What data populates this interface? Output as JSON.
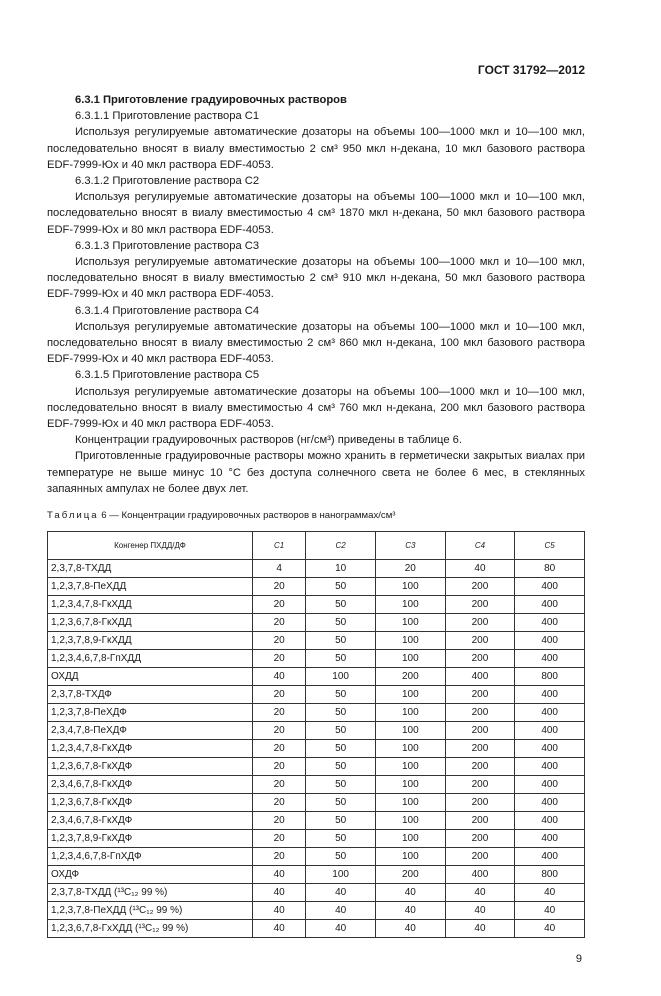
{
  "header": {
    "doc_code": "ГОСТ 31792—2012"
  },
  "paragraphs": [
    {
      "t": "6.3.1 Приготовление градуировочных растворов",
      "bold": true
    },
    {
      "t": "6.3.1.1 Приготовление раствора C1"
    },
    {
      "t": "Используя регулируемые автоматические дозаторы на объемы 100—1000 мкл и 10—100 мкл, последовательно вносят в виалу вместимостью 2 см³ 950 мкл н-декана, 10 мкл базового раствора EDF-7999-Юх и 40 мкл раствора EDF-4053."
    },
    {
      "t": "6.3.1.2 Приготовление раствора C2"
    },
    {
      "t": "Используя регулируемые автоматические дозаторы на объемы 100—1000 мкл и 10—100 мкл, последовательно вносят в виалу вместимостью 4 см³ 1870 мкл н-декана, 50 мкл базового раствора EDF-7999-Юх и 80 мкл раствора EDF-4053."
    },
    {
      "t": "6.3.1.3 Приготовление раствора C3"
    },
    {
      "t": "Используя регулируемые автоматические дозаторы на объемы 100—1000 мкл и 10—100 мкл, последовательно вносят в виалу вместимостью 2 см³ 910 мкл н-декана, 50 мкл базового раствора EDF-7999-Юх и 40 мкл раствора EDF-4053."
    },
    {
      "t": "6.3.1.4 Приготовление раствора C4"
    },
    {
      "t": "Используя регулируемые автоматические дозаторы на объемы 100—1000 мкл и 10—100 мкл, последовательно вносят в виалу вместимостью 2 см³ 860 мкл н-декана, 100 мкл базового раствора EDF-7999-Юх и 40 мкл раствора EDF-4053."
    },
    {
      "t": "6.3.1.5 Приготовление раствора C5"
    },
    {
      "t": "Используя регулируемые автоматические дозаторы на объемы 100—1000 мкл и 10—100 мкл, последовательно вносят в виалу вместимостью 4 см³ 760 мкл н-декана, 200 мкл базового раствора EDF-7999-Юх и 40 мкл раствора EDF-4053."
    },
    {
      "t": "Концентрации градуировочных растворов (нг/см³) приведены в таблице 6."
    },
    {
      "t": "Приготовленные градуировочные растворы можно хранить в герметически закрытых виалах при температуре не выше минус 10 °С без доступа солнечного света не более 6 мес, в стеклянных запаянных ампулах не более двух лет."
    }
  ],
  "table": {
    "caption_label": "Таблица",
    "caption_text": " 6 — Концентрации градуировочных растворов в нанограммах/см³",
    "headers": [
      "Конгенер ПХДД/ДФ",
      "C1",
      "C2",
      "C3",
      "C4",
      "C5"
    ],
    "rows": [
      [
        "2,3,7,8-ТХДД",
        "4",
        "10",
        "20",
        "40",
        "80"
      ],
      [
        "1,2,3,7,8-ПеХДД",
        "20",
        "50",
        "100",
        "200",
        "400"
      ],
      [
        "1,2,3,4,7,8-ГкХДД",
        "20",
        "50",
        "100",
        "200",
        "400"
      ],
      [
        "1,2,3,6,7,8-ГкХДД",
        "20",
        "50",
        "100",
        "200",
        "400"
      ],
      [
        "1,2,3,7,8,9-ГкХДД",
        "20",
        "50",
        "100",
        "200",
        "400"
      ],
      [
        "1,2,3,4,6,7,8-ГпХДД",
        "20",
        "50",
        "100",
        "200",
        "400"
      ],
      [
        "ОХДД",
        "40",
        "100",
        "200",
        "400",
        "800"
      ],
      [
        "2,3,7,8-ТХДФ",
        "20",
        "50",
        "100",
        "200",
        "400"
      ],
      [
        "1,2,3,7,8-ПеХДФ",
        "20",
        "50",
        "100",
        "200",
        "400"
      ],
      [
        "2,3,4,7,8-ПеХДФ",
        "20",
        "50",
        "100",
        "200",
        "400"
      ],
      [
        "1,2,3,4,7,8-ГкХДФ",
        "20",
        "50",
        "100",
        "200",
        "400"
      ],
      [
        "1,2,3,6,7,8-ГкХДФ",
        "20",
        "50",
        "100",
        "200",
        "400"
      ],
      [
        "2,3,4,6,7,8-ГкХДФ",
        "20",
        "50",
        "100",
        "200",
        "400"
      ],
      [
        "1,2,3,6,7,8-ГкХДФ",
        "20",
        "50",
        "100",
        "200",
        "400"
      ],
      [
        "2,3,4,6,7,8-ГкХДФ",
        "20",
        "50",
        "100",
        "200",
        "400"
      ],
      [
        "1,2,3,7,8,9-ГкХДФ",
        "20",
        "50",
        "100",
        "200",
        "400"
      ],
      [
        "1,2,3,4,6,7,8-ГпХДФ",
        "20",
        "50",
        "100",
        "200",
        "400"
      ],
      [
        "ОХДФ",
        "40",
        "100",
        "200",
        "400",
        "800"
      ],
      [
        "2,3,7,8-ТХДД (¹³C₁₂ 99 %)",
        "40",
        "40",
        "40",
        "40",
        "40"
      ],
      [
        "1,2,3,7,8-ПеХДД (¹³C₁₂ 99 %)",
        "40",
        "40",
        "40",
        "40",
        "40"
      ],
      [
        "1,2,3,6,7,8-ГхХДД (¹³C₁₂ 99 %)",
        "40",
        "40",
        "40",
        "40",
        "40"
      ]
    ]
  },
  "footer": {
    "page_number": "9"
  }
}
